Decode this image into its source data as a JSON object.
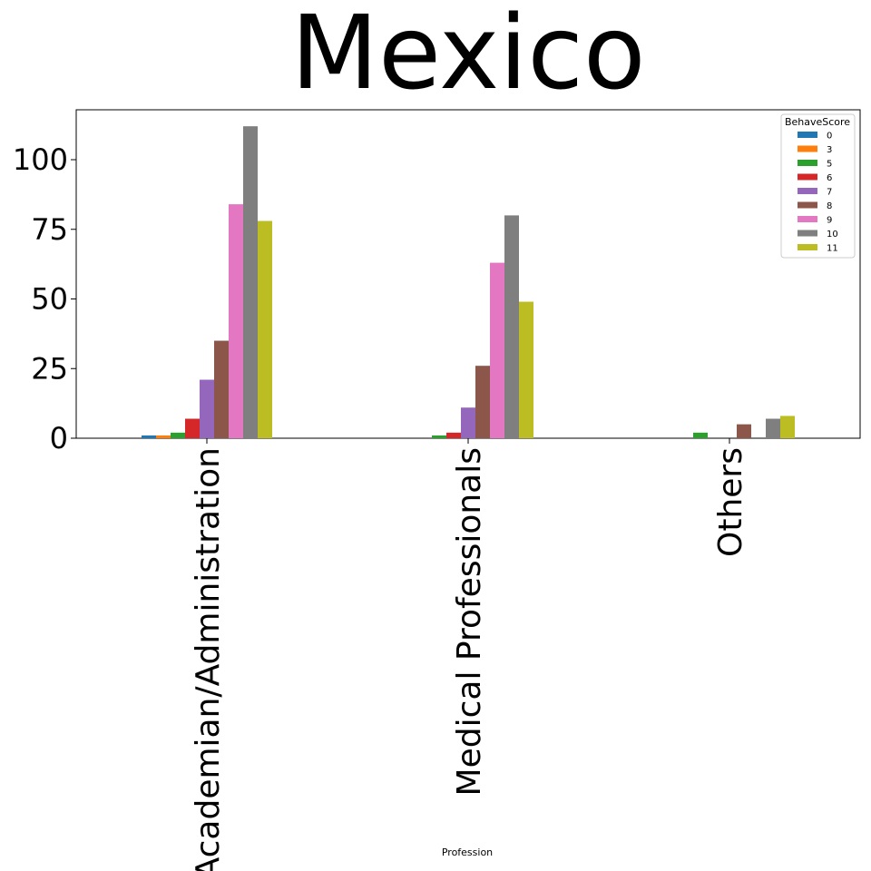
{
  "chart_data": {
    "type": "bar",
    "title": "Mexico",
    "xlabel": "Profession",
    "ylabel": "",
    "ylim": [
      0,
      118
    ],
    "yticks": [
      0,
      25,
      50,
      75,
      100
    ],
    "categories": [
      "Academian/Administration",
      "Medical Professionals",
      "Others"
    ],
    "legend": {
      "title": "BehaveScore",
      "placement": "top-right"
    },
    "grid": false,
    "series": [
      {
        "name": "0",
        "color": "#1f77b4",
        "values": [
          1,
          0,
          0
        ]
      },
      {
        "name": "3",
        "color": "#ff7f0e",
        "values": [
          1,
          0,
          0
        ]
      },
      {
        "name": "5",
        "color": "#2ca02c",
        "values": [
          2,
          1,
          2
        ]
      },
      {
        "name": "6",
        "color": "#d62728",
        "values": [
          7,
          2,
          0
        ]
      },
      {
        "name": "7",
        "color": "#9467bd",
        "values": [
          21,
          11,
          0
        ]
      },
      {
        "name": "8",
        "color": "#8c564b",
        "values": [
          35,
          26,
          5
        ]
      },
      {
        "name": "9",
        "color": "#e377c2",
        "values": [
          84,
          63,
          0
        ]
      },
      {
        "name": "10",
        "color": "#7f7f7f",
        "values": [
          112,
          80,
          7
        ]
      },
      {
        "name": "11",
        "color": "#bcbd22",
        "values": [
          78,
          49,
          8
        ]
      }
    ]
  }
}
